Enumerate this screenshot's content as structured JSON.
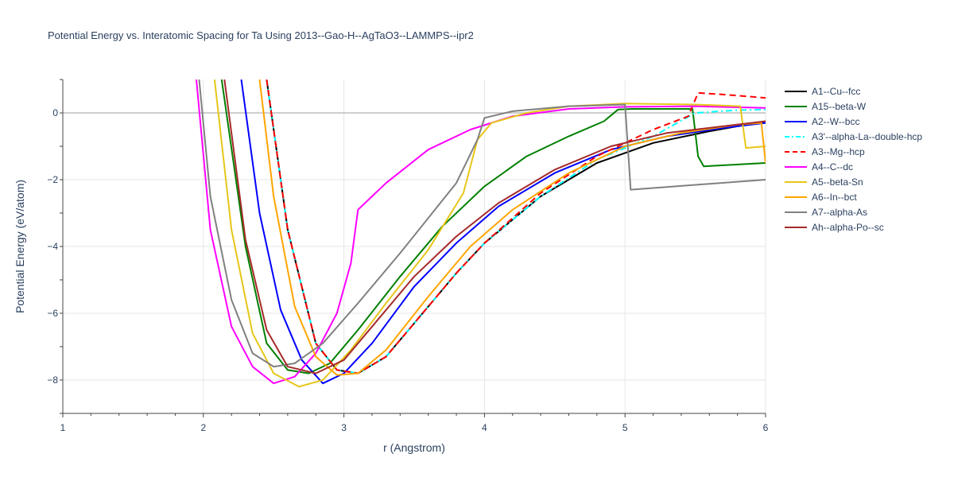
{
  "chart_data": {
    "type": "line",
    "title": "Potential Energy vs. Interatomic Spacing for Ta Using 2013--Gao-H--AgTaO3--LAMMPS--ipr2",
    "xlabel": "r (Angstrom)",
    "ylabel": "Potential Energy (eV/atom)",
    "xlim": [
      1,
      6
    ],
    "ylim": [
      -9,
      1
    ],
    "xticks": [
      1,
      2,
      3,
      4,
      5,
      6
    ],
    "yticks": [
      -8,
      -6,
      -4,
      -2,
      0
    ],
    "grid": true,
    "legend_position": "right",
    "series": [
      {
        "name": "A1--Cu--fcc",
        "color": "#000000",
        "dash": "solid",
        "points": [
          [
            2.45,
            1.0
          ],
          [
            2.6,
            -3.5
          ],
          [
            2.8,
            -6.9
          ],
          [
            2.95,
            -7.7
          ],
          [
            3.1,
            -7.8
          ],
          [
            3.3,
            -7.3
          ],
          [
            3.5,
            -6.3
          ],
          [
            3.8,
            -4.8
          ],
          [
            4.0,
            -3.9
          ],
          [
            4.4,
            -2.5
          ],
          [
            4.8,
            -1.5
          ],
          [
            5.2,
            -0.9
          ],
          [
            5.6,
            -0.55
          ],
          [
            6.0,
            -0.25
          ]
        ]
      },
      {
        "name": "A15--beta-W",
        "color": "#008000",
        "dash": "solid",
        "points": [
          [
            2.13,
            1.0
          ],
          [
            2.3,
            -4.0
          ],
          [
            2.45,
            -6.9
          ],
          [
            2.6,
            -7.7
          ],
          [
            2.75,
            -7.8
          ],
          [
            2.9,
            -7.5
          ],
          [
            3.1,
            -6.5
          ],
          [
            3.4,
            -4.9
          ],
          [
            3.7,
            -3.4
          ],
          [
            4.0,
            -2.2
          ],
          [
            4.3,
            -1.3
          ],
          [
            4.6,
            -0.7
          ],
          [
            4.85,
            -0.25
          ],
          [
            4.95,
            0.1
          ],
          [
            5.05,
            0.12
          ],
          [
            5.48,
            0.12
          ],
          [
            5.52,
            -1.3
          ],
          [
            5.56,
            -1.6
          ],
          [
            6.0,
            -1.5
          ]
        ]
      },
      {
        "name": "A2--W--bcc",
        "color": "#0000ff",
        "dash": "solid",
        "points": [
          [
            2.27,
            1.0
          ],
          [
            2.4,
            -3.0
          ],
          [
            2.55,
            -5.9
          ],
          [
            2.7,
            -7.4
          ],
          [
            2.85,
            -8.1
          ],
          [
            3.0,
            -7.8
          ],
          [
            3.2,
            -6.9
          ],
          [
            3.5,
            -5.2
          ],
          [
            3.8,
            -3.9
          ],
          [
            4.1,
            -2.8
          ],
          [
            4.5,
            -1.8
          ],
          [
            4.9,
            -1.1
          ],
          [
            5.3,
            -0.7
          ],
          [
            5.7,
            -0.45
          ],
          [
            6.0,
            -0.3
          ]
        ]
      },
      {
        "name": "A3'--alpha-La--double-hcp",
        "color": "#00ffff",
        "dash": "dashdot",
        "points": [
          [
            2.45,
            1.0
          ],
          [
            2.6,
            -3.5
          ],
          [
            2.8,
            -6.9
          ],
          [
            2.95,
            -7.7
          ],
          [
            3.1,
            -7.8
          ],
          [
            3.3,
            -7.3
          ],
          [
            3.5,
            -6.3
          ],
          [
            3.8,
            -4.8
          ],
          [
            4.0,
            -3.9
          ],
          [
            4.4,
            -2.5
          ],
          [
            4.8,
            -1.4
          ],
          [
            5.2,
            -0.7
          ],
          [
            5.5,
            0.0
          ],
          [
            5.8,
            0.08
          ],
          [
            6.0,
            0.1
          ]
        ]
      },
      {
        "name": "A3--Mg--hcp",
        "color": "#ff0000",
        "dash": "dash",
        "points": [
          [
            2.45,
            1.0
          ],
          [
            2.6,
            -3.5
          ],
          [
            2.8,
            -6.9
          ],
          [
            2.95,
            -7.7
          ],
          [
            3.1,
            -7.8
          ],
          [
            3.3,
            -7.3
          ],
          [
            3.5,
            -6.3
          ],
          [
            3.8,
            -4.8
          ],
          [
            4.0,
            -3.9
          ],
          [
            4.4,
            -2.4
          ],
          [
            4.8,
            -1.3
          ],
          [
            5.2,
            -0.5
          ],
          [
            5.45,
            -0.1
          ],
          [
            5.52,
            0.6
          ],
          [
            5.7,
            0.55
          ],
          [
            6.0,
            0.45
          ]
        ]
      },
      {
        "name": "A4--C--dc",
        "color": "#ff00ff",
        "dash": "solid",
        "points": [
          [
            1.95,
            1.0
          ],
          [
            2.05,
            -3.5
          ],
          [
            2.2,
            -6.4
          ],
          [
            2.35,
            -7.6
          ],
          [
            2.5,
            -8.1
          ],
          [
            2.65,
            -7.9
          ],
          [
            2.8,
            -7.2
          ],
          [
            2.95,
            -6.0
          ],
          [
            3.05,
            -4.5
          ],
          [
            3.1,
            -2.9
          ],
          [
            3.3,
            -2.1
          ],
          [
            3.6,
            -1.1
          ],
          [
            3.9,
            -0.5
          ],
          [
            4.2,
            -0.1
          ],
          [
            4.6,
            0.12
          ],
          [
            5.0,
            0.18
          ],
          [
            5.5,
            0.2
          ],
          [
            6.0,
            0.15
          ]
        ]
      },
      {
        "name": "A5--beta-Sn",
        "color": "#e6c619",
        "dash": "solid",
        "points": [
          [
            2.08,
            1.0
          ],
          [
            2.2,
            -3.5
          ],
          [
            2.35,
            -6.6
          ],
          [
            2.5,
            -7.8
          ],
          [
            2.68,
            -8.2
          ],
          [
            2.85,
            -8.0
          ],
          [
            3.05,
            -7.1
          ],
          [
            3.3,
            -5.7
          ],
          [
            3.6,
            -4.1
          ],
          [
            3.85,
            -2.4
          ],
          [
            3.95,
            -0.8
          ],
          [
            4.05,
            -0.3
          ],
          [
            4.3,
            0.0
          ],
          [
            4.6,
            0.2
          ],
          [
            5.0,
            0.28
          ],
          [
            5.5,
            0.25
          ],
          [
            5.82,
            0.2
          ],
          [
            5.86,
            -1.05
          ],
          [
            6.0,
            -1.0
          ]
        ]
      },
      {
        "name": "A6--In--bct",
        "color": "#ffa500",
        "dash": "solid",
        "points": [
          [
            2.4,
            1.0
          ],
          [
            2.5,
            -2.5
          ],
          [
            2.65,
            -5.8
          ],
          [
            2.8,
            -7.3
          ],
          [
            2.95,
            -7.85
          ],
          [
            3.1,
            -7.8
          ],
          [
            3.3,
            -7.1
          ],
          [
            3.6,
            -5.5
          ],
          [
            3.9,
            -4.0
          ],
          [
            4.2,
            -2.9
          ],
          [
            4.6,
            -1.8
          ],
          [
            5.0,
            -1.0
          ],
          [
            5.4,
            -0.6
          ],
          [
            5.8,
            -0.35
          ],
          [
            5.97,
            -0.3
          ],
          [
            6.0,
            -1.5
          ]
        ]
      },
      {
        "name": "A7--alpha-As",
        "color": "#808080",
        "dash": "solid",
        "points": [
          [
            1.97,
            1.0
          ],
          [
            2.05,
            -2.5
          ],
          [
            2.2,
            -5.6
          ],
          [
            2.35,
            -7.2
          ],
          [
            2.5,
            -7.6
          ],
          [
            2.65,
            -7.5
          ],
          [
            2.85,
            -6.9
          ],
          [
            3.1,
            -5.7
          ],
          [
            3.4,
            -4.2
          ],
          [
            3.8,
            -2.1
          ],
          [
            3.95,
            -0.8
          ],
          [
            4.0,
            -0.15
          ],
          [
            4.2,
            0.05
          ],
          [
            4.6,
            0.2
          ],
          [
            5.0,
            0.25
          ],
          [
            5.02,
            -1.0
          ],
          [
            5.04,
            -2.3
          ],
          [
            6.0,
            -2.0
          ]
        ]
      },
      {
        "name": "Ah--alpha-Po--sc",
        "color": "#a52a2a",
        "dash": "solid",
        "points": [
          [
            2.15,
            1.0
          ],
          [
            2.3,
            -3.8
          ],
          [
            2.45,
            -6.5
          ],
          [
            2.6,
            -7.6
          ],
          [
            2.8,
            -7.8
          ],
          [
            3.0,
            -7.4
          ],
          [
            3.2,
            -6.4
          ],
          [
            3.5,
            -4.9
          ],
          [
            3.8,
            -3.7
          ],
          [
            4.1,
            -2.7
          ],
          [
            4.5,
            -1.7
          ],
          [
            4.9,
            -1.0
          ],
          [
            5.3,
            -0.6
          ],
          [
            5.7,
            -0.4
          ],
          [
            6.0,
            -0.25
          ]
        ]
      }
    ]
  }
}
